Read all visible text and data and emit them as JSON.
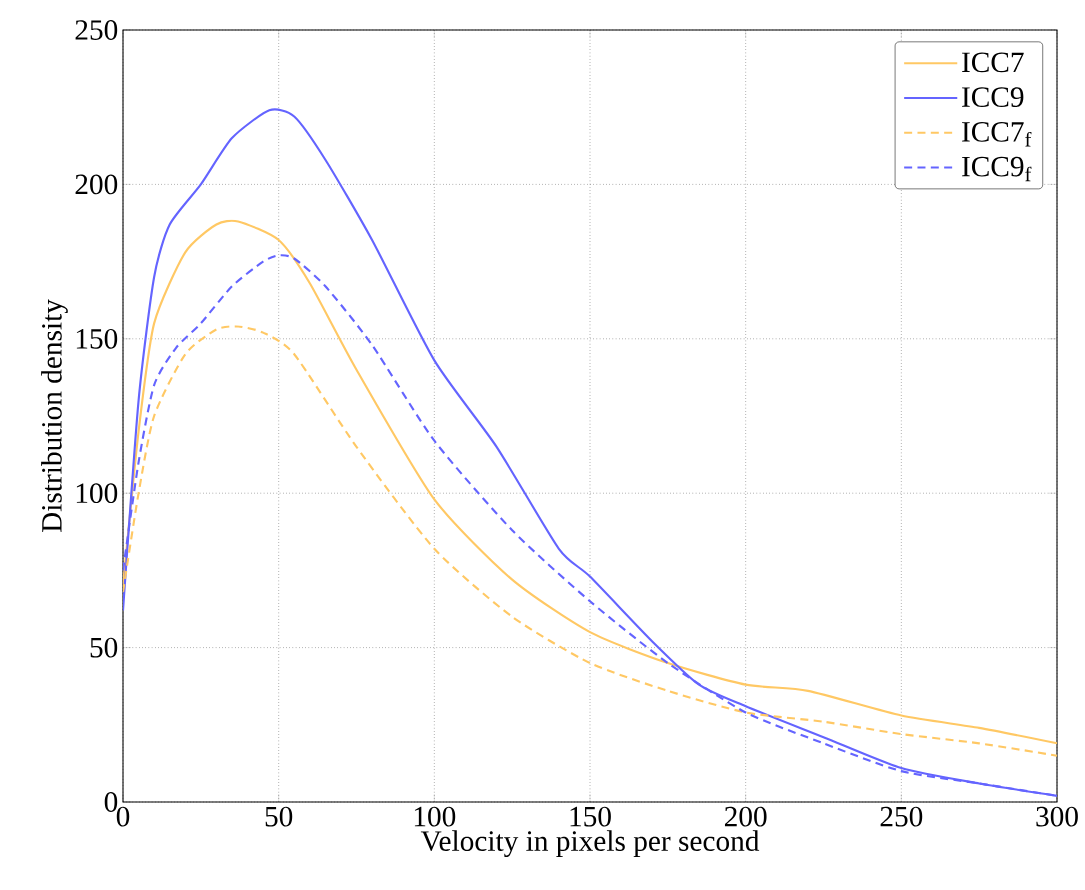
{
  "chart_data": {
    "type": "line",
    "xlabel": "Velocity in pixels per second",
    "ylabel": "Distribution density",
    "xlim": [
      0,
      300
    ],
    "ylim": [
      0,
      250
    ],
    "xticks": [
      0,
      50,
      100,
      150,
      200,
      250,
      300
    ],
    "yticks": [
      0,
      50,
      100,
      150,
      200,
      250
    ],
    "grid": true,
    "legend": "top right",
    "marker": "none",
    "series": [
      {
        "name": "ICC7",
        "color": "#ffc864",
        "line_style": "solid",
        "x": [
          0,
          5,
          10,
          20,
          30,
          37,
          50,
          60,
          75,
          100,
          125,
          150,
          175,
          200,
          220,
          250,
          275,
          300
        ],
        "values": [
          70,
          120,
          155,
          178,
          187,
          188,
          182,
          168,
          140,
          98,
          72,
          55,
          45,
          38,
          36,
          28,
          24,
          19
        ]
      },
      {
        "name": "ICC9",
        "color": "#6464ff",
        "line_style": "solid",
        "x": [
          0,
          5,
          10,
          15,
          25,
          35,
          47,
          55,
          65,
          80,
          100,
          120,
          140,
          150,
          170,
          185,
          200,
          225,
          250,
          275,
          300
        ],
        "values": [
          62,
          130,
          170,
          187,
          200,
          215,
          224,
          222,
          208,
          182,
          143,
          115,
          82,
          73,
          52,
          38,
          31,
          21,
          11,
          6,
          2
        ]
      },
      {
        "name": "ICC7$_{f}$",
        "color": "#ffc864",
        "line_style": "dashed",
        "x": [
          0,
          5,
          10,
          20,
          30,
          37,
          45,
          55,
          75,
          100,
          125,
          150,
          175,
          200,
          225,
          250,
          275,
          300
        ],
        "values": [
          68,
          100,
          125,
          145,
          153,
          154,
          152,
          145,
          115,
          82,
          60,
          45,
          36,
          29,
          26,
          22,
          19,
          15
        ]
      },
      {
        "name": "ICC9$_{f}$",
        "color": "#6464ff",
        "line_style": "dashed",
        "x": [
          0,
          5,
          10,
          17,
          25,
          35,
          45,
          50,
          55,
          65,
          80,
          100,
          125,
          150,
          175,
          200,
          225,
          250,
          275,
          300
        ],
        "values": [
          75,
          110,
          135,
          147,
          155,
          167,
          175,
          177,
          176,
          167,
          148,
          117,
          88,
          65,
          45,
          29,
          19,
          10,
          6,
          2
        ]
      }
    ]
  }
}
